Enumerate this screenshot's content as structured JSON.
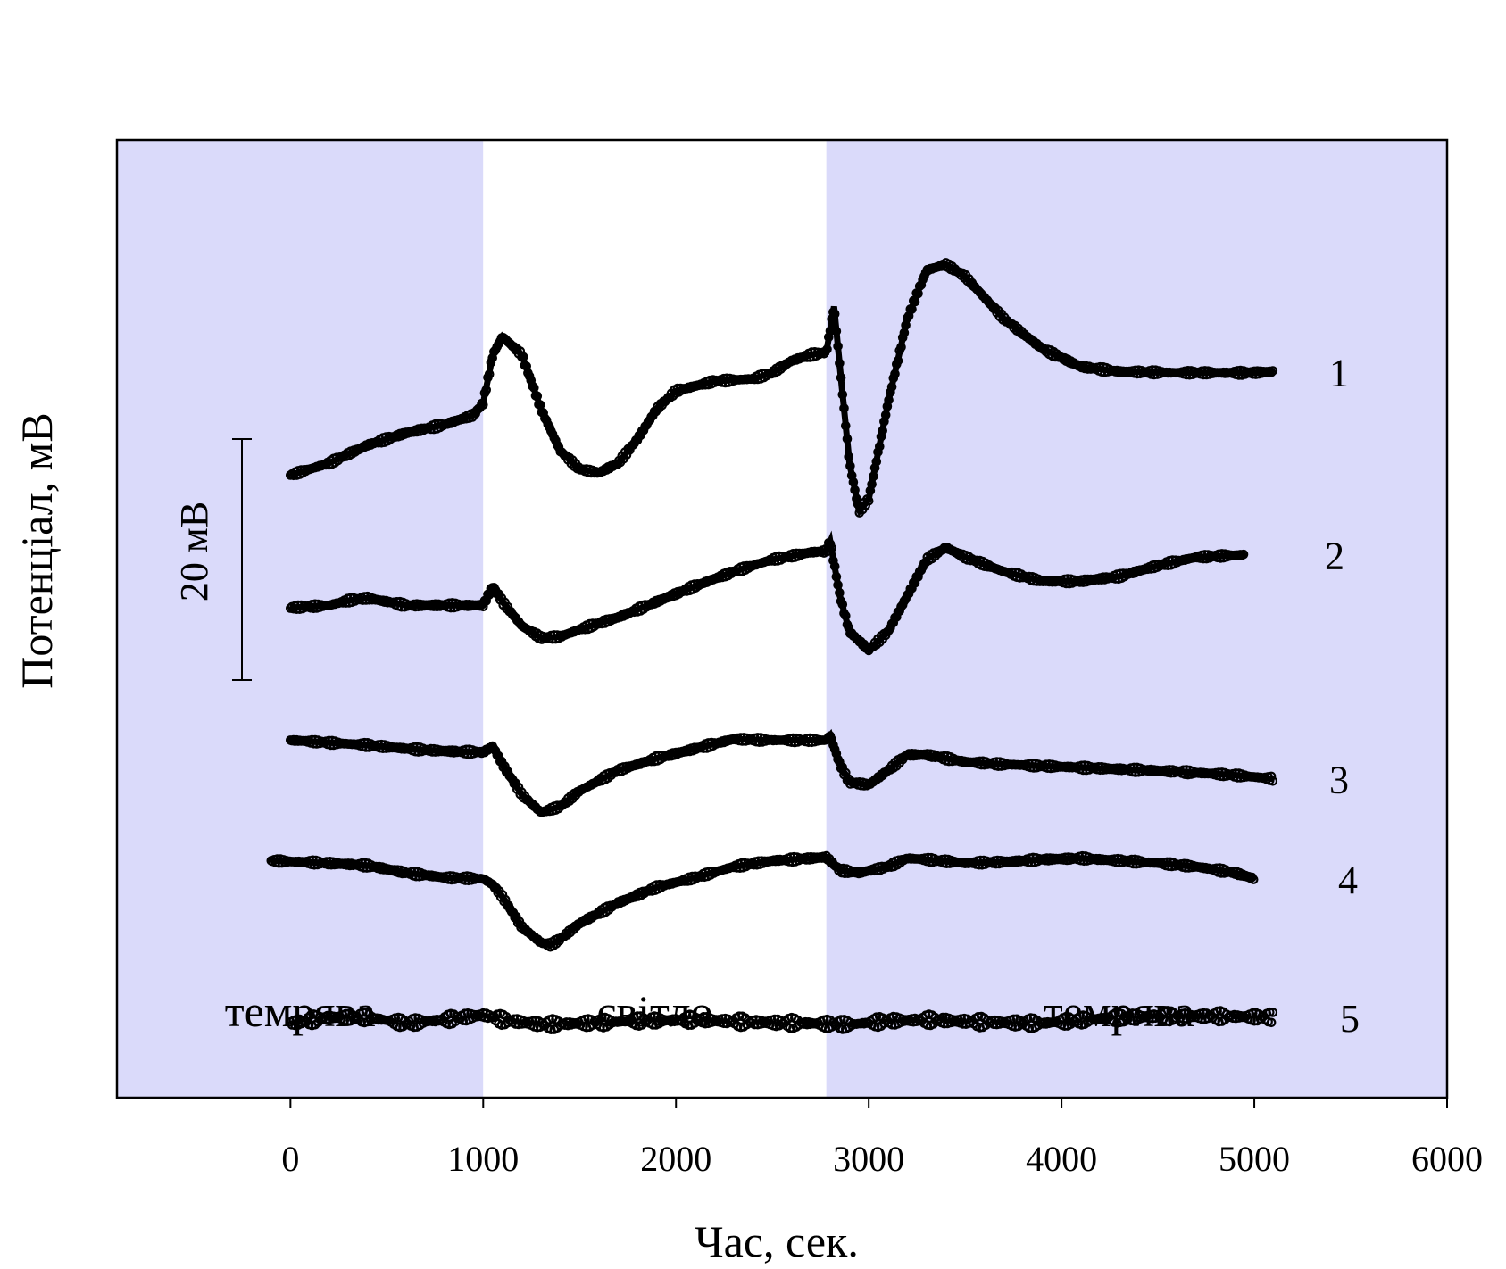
{
  "chart_data": {
    "type": "scatter",
    "title": "",
    "xlabel": "Час, сек.",
    "ylabel": "Потенціал,  мВ",
    "xlim": [
      -900,
      6000
    ],
    "xticks": [
      0,
      1000,
      2000,
      3000,
      4000,
      5000,
      6000
    ],
    "y_axis_ticks": false,
    "grid": false,
    "legend": "none",
    "scale_bar": {
      "label": "20 мВ",
      "value_mV": 20
    },
    "regions": [
      {
        "label": "темрява",
        "x_start": -900,
        "x_end": 1000,
        "color": "#dadafa"
      },
      {
        "label": "світло",
        "x_start": 1000,
        "x_end": 2780,
        "color": "#ffffff"
      },
      {
        "label": "темрява",
        "x_start": 2780,
        "x_end": 6000,
        "color": "#dadafa"
      }
    ],
    "series": [
      {
        "label": "1",
        "note": "values in mV, relative vertical position",
        "x": [
          0,
          200,
          400,
          600,
          800,
          950,
          1000,
          1050,
          1100,
          1200,
          1300,
          1400,
          1500,
          1600,
          1700,
          1800,
          1900,
          2000,
          2200,
          2400,
          2500,
          2600,
          2700,
          2780,
          2820,
          2850,
          2900,
          2950,
          3000,
          3100,
          3200,
          3300,
          3400,
          3500,
          3700,
          3900,
          4100,
          4300,
          4600,
          5000,
          5100
        ],
        "values": [
          35,
          36,
          37.5,
          38.5,
          39.2,
          40,
          41,
          45,
          46.5,
          45,
          40.5,
          37,
          35.5,
          35.2,
          36,
          38,
          40.5,
          42,
          42.8,
          43,
          43.5,
          44.5,
          45,
          45.2,
          49,
          44,
          36,
          32,
          33,
          41,
          48,
          52,
          52.5,
          51.5,
          48,
          45.5,
          44,
          43.6,
          43.5,
          43.5,
          43.6
        ]
      },
      {
        "label": "2",
        "x": [
          0,
          200,
          300,
          400,
          600,
          800,
          1000,
          1050,
          1100,
          1200,
          1300,
          1400,
          1500,
          1700,
          1900,
          2100,
          2300,
          2500,
          2700,
          2780,
          2800,
          2850,
          2900,
          3000,
          3100,
          3200,
          3300,
          3400,
          3500,
          3700,
          3900,
          4100,
          4300,
          4500,
          4700,
          4950
        ],
        "values": [
          24,
          24.2,
          24.6,
          24.8,
          24.2,
          24.2,
          24.2,
          25.8,
          24.5,
          22.5,
          21.5,
          21.6,
          22.2,
          23.2,
          24.5,
          25.8,
          27,
          28,
          28.6,
          28.7,
          29.5,
          25,
          22,
          20.5,
          22,
          25,
          28,
          29,
          28.2,
          27,
          26.2,
          26.2,
          26.6,
          27.5,
          28.2,
          28.4
        ]
      },
      {
        "label": "3",
        "x": [
          0,
          200,
          400,
          600,
          800,
          1000,
          1050,
          1100,
          1200,
          1300,
          1400,
          1500,
          1700,
          1900,
          2100,
          2300,
          2500,
          2700,
          2780,
          2800,
          2850,
          2900,
          3000,
          3100,
          3200,
          3300,
          3500,
          3700,
          4000,
          4300,
          4600,
          4900,
          5100
        ],
        "values": [
          13,
          12.8,
          12.6,
          12.3,
          12.1,
          12,
          12.5,
          11,
          8.5,
          7,
          7.5,
          8.8,
          10.5,
          11.5,
          12.3,
          13.1,
          13,
          13,
          13,
          13.4,
          11,
          9.5,
          9.3,
          10.5,
          11.8,
          11.8,
          11.2,
          11,
          10.8,
          10.6,
          10.4,
          10.1,
          9.8
        ]
      },
      {
        "label": "4",
        "x": [
          -100,
          200,
          400,
          600,
          800,
          1000,
          1050,
          1100,
          1200,
          1300,
          1350,
          1400,
          1500,
          1700,
          1900,
          2100,
          2300,
          2500,
          2700,
          2780,
          2850,
          2950,
          3100,
          3200,
          3300,
          3500,
          3700,
          3900,
          4100,
          4300,
          4500,
          4700,
          4900,
          5000
        ],
        "values": [
          3,
          2.8,
          2.6,
          2,
          1.6,
          1.5,
          1,
          0,
          -2.5,
          -3.8,
          -4,
          -3.5,
          -2.2,
          -0.5,
          0.8,
          1.6,
          2.5,
          3,
          3.2,
          3.3,
          2.2,
          2,
          2.5,
          3.2,
          3.1,
          2.8,
          2.9,
          3.1,
          3.2,
          3,
          2.8,
          2.5,
          2,
          1.5
        ]
      },
      {
        "label": "5",
        "x": [
          0,
          200,
          400,
          600,
          800,
          1000,
          1100,
          1300,
          1500,
          1800,
          2100,
          2400,
          2700,
          2900,
          3100,
          3300,
          3600,
          3900,
          4200,
          4500,
          4800,
          5100
        ],
        "values": [
          -10.5,
          -10,
          -10,
          -10.5,
          -10.2,
          -9.8,
          -10.2,
          -10.6,
          -10.5,
          -10.3,
          -10.2,
          -10.4,
          -10.5,
          -10.6,
          -10.3,
          -10.2,
          -10.4,
          -10.5,
          -10.1,
          -9.9,
          -9.9,
          -10
        ]
      }
    ]
  }
}
